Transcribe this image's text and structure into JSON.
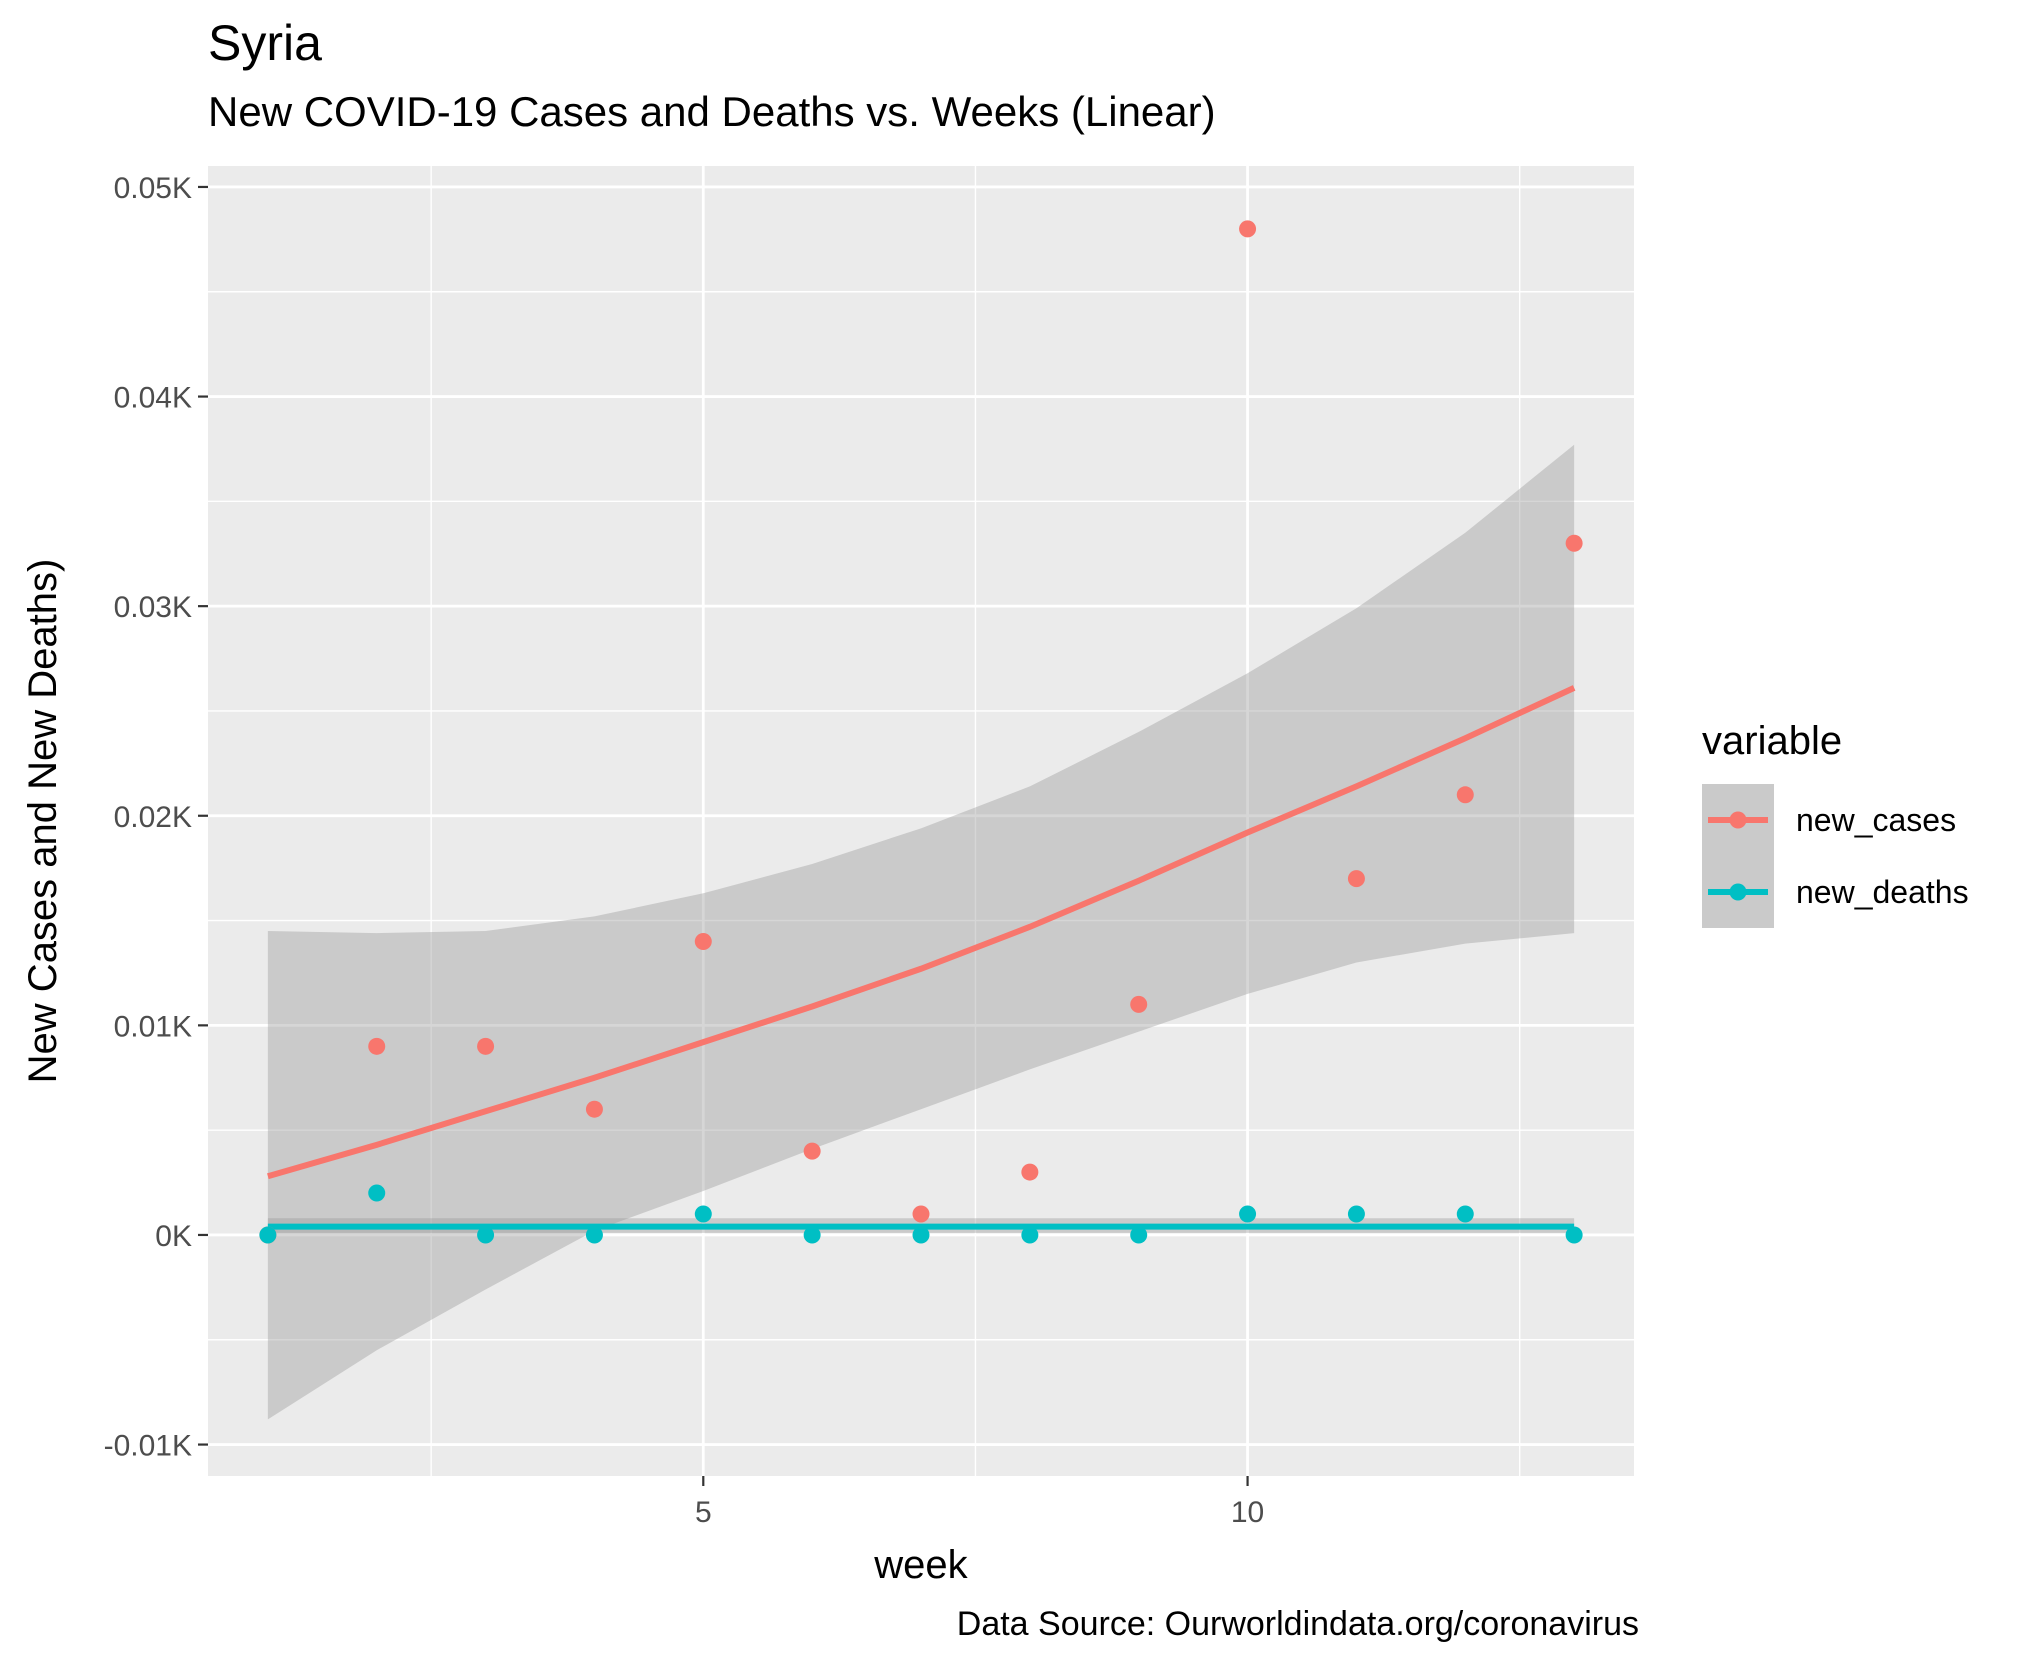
{
  "title": "Syria",
  "subtitle": "New COVID-19 Cases and Deaths vs. Weeks (Linear)",
  "caption": "Data Source: Ourworldindata.org/coronavirus",
  "chart_data": {
    "type": "scatter",
    "xlabel": "week",
    "ylabel": "New Cases and New Deaths)",
    "xlim": [
      0.45,
      13.55
    ],
    "ylim": [
      -0.0115,
      0.051
    ],
    "x_ticks": [
      5,
      10
    ],
    "x_tick_labels": [
      "5",
      "10"
    ],
    "y_ticks": [
      -0.01,
      0,
      0.01,
      0.02,
      0.03,
      0.04,
      0.05
    ],
    "y_tick_labels": [
      "-0.01K",
      "0K",
      "0.01K",
      "0.02K",
      "0.03K",
      "0.04K",
      "0.05K"
    ],
    "grid": true,
    "legend": {
      "title": "variable",
      "position": "right"
    },
    "series": [
      {
        "name": "new_cases",
        "color": "#F8766D",
        "x": [
          1,
          2,
          3,
          4,
          5,
          6,
          7,
          8,
          9,
          10,
          11,
          12,
          13
        ],
        "y": [
          0,
          0.009,
          0.009,
          0.006,
          0.014,
          0.004,
          0.001,
          0.003,
          0.011,
          0.048,
          0.017,
          0.021,
          0.033
        ],
        "fit": {
          "x": [
            1,
            2,
            3,
            4,
            5,
            6,
            7,
            8,
            9,
            10,
            11,
            12,
            13
          ],
          "y": [
            0.0028,
            0.0043,
            0.0059,
            0.0075,
            0.0092,
            0.0109,
            0.0127,
            0.0147,
            0.0169,
            0.0192,
            0.0214,
            0.0237,
            0.0261
          ],
          "lower": [
            -0.0088,
            -0.0055,
            -0.0026,
            0.0002,
            0.0021,
            0.0041,
            0.006,
            0.0079,
            0.0097,
            0.0115,
            0.013,
            0.0139,
            0.0144
          ],
          "upper": [
            0.0145,
            0.0144,
            0.0145,
            0.0152,
            0.0163,
            0.0177,
            0.0194,
            0.0214,
            0.024,
            0.0268,
            0.0299,
            0.0335,
            0.0377
          ]
        }
      },
      {
        "name": "new_deaths",
        "color": "#00BFC4",
        "x": [
          1,
          2,
          3,
          4,
          5,
          6,
          7,
          8,
          9,
          10,
          11,
          12,
          13
        ],
        "y": [
          0,
          0.002,
          0,
          0,
          0.001,
          0,
          0,
          0,
          0,
          0.001,
          0.001,
          0.001,
          0
        ],
        "fit": {
          "x": [
            1,
            13
          ],
          "y": [
            0.0004,
            0.0004
          ],
          "lower": [
            0.0001,
            0.0001
          ],
          "upper": [
            0.0008,
            0.0008
          ]
        }
      }
    ]
  }
}
